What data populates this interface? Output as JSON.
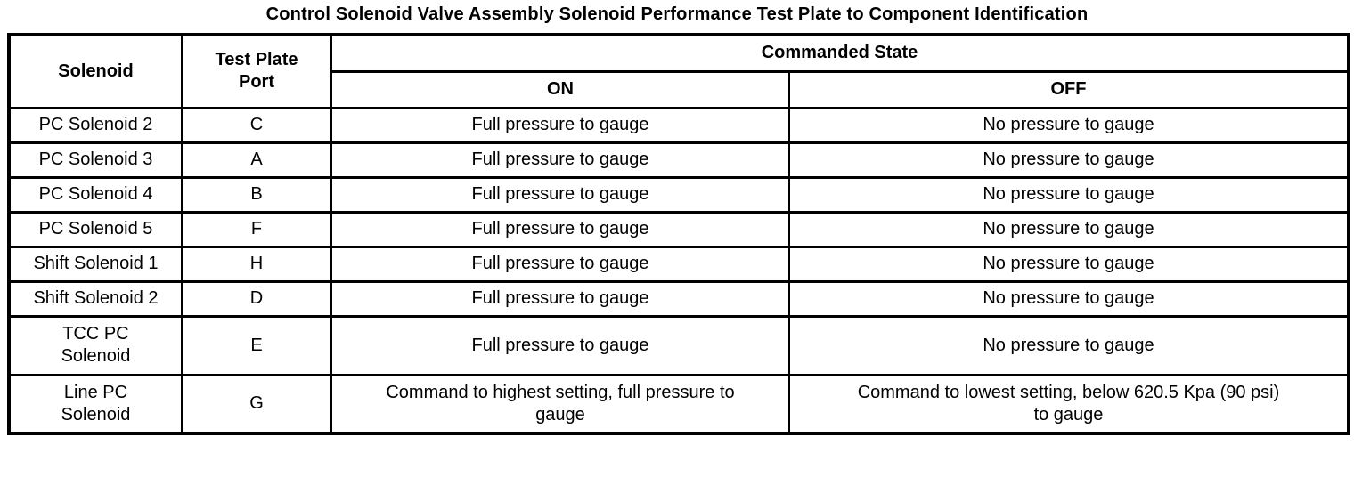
{
  "title": "Control Solenoid Valve Assembly Solenoid Performance Test Plate to Component Identification",
  "colors": {
    "text": "#000000",
    "border": "#000000",
    "background": "#ffffff"
  },
  "table": {
    "headers": {
      "solenoid": "Solenoid",
      "test_plate_port": "Test Plate\nPort",
      "commanded_state": "Commanded State",
      "on": "ON",
      "off": "OFF"
    },
    "rows": [
      {
        "solenoid": "PC Solenoid 2",
        "port": "C",
        "on": "Full pressure to gauge",
        "off": "No pressure to gauge"
      },
      {
        "solenoid": "PC Solenoid 3",
        "port": "A",
        "on": "Full pressure to gauge",
        "off": "No pressure to gauge"
      },
      {
        "solenoid": "PC Solenoid 4",
        "port": "B",
        "on": "Full pressure to gauge",
        "off": "No pressure to gauge"
      },
      {
        "solenoid": "PC Solenoid 5",
        "port": "F",
        "on": "Full pressure to gauge",
        "off": "No pressure to gauge"
      },
      {
        "solenoid": "Shift Solenoid 1",
        "port": "H",
        "on": "Full pressure to gauge",
        "off": "No pressure to gauge"
      },
      {
        "solenoid": "Shift Solenoid 2",
        "port": "D",
        "on": "Full pressure to gauge",
        "off": "No pressure to gauge"
      },
      {
        "solenoid": "TCC PC\nSolenoid",
        "port": "E",
        "on": "Full pressure to gauge",
        "off": "No pressure to gauge"
      },
      {
        "solenoid": "Line PC\nSolenoid",
        "port": "G",
        "on": "Command to highest setting, full pressure to\ngauge",
        "off": "Command to lowest setting, below 620.5 Kpa (90 psi)\nto gauge"
      }
    ]
  }
}
